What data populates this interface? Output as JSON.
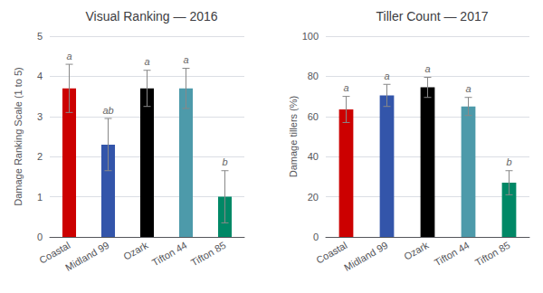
{
  "chart_data": [
    {
      "type": "bar",
      "title": "Visual Ranking — 2016",
      "ylabel": "Damage Ranking Scale (1 to 5)",
      "categories": [
        "Coastal",
        "Midland 99",
        "Ozark",
        "Tifton 44",
        "Tifton 85"
      ],
      "values": [
        3.7,
        2.3,
        3.7,
        3.7,
        1.0
      ],
      "errors": [
        0.6,
        0.65,
        0.45,
        0.5,
        0.65
      ],
      "colors": [
        "#cc0000",
        "#3355aa",
        "#000000",
        "#4d9aaa",
        "#008866"
      ],
      "annotations": [
        "a",
        "ab",
        "a",
        "a",
        "b"
      ],
      "ylim": [
        0,
        5
      ],
      "yticks": [
        0,
        1,
        2,
        3,
        4,
        5
      ],
      "grid": true
    },
    {
      "type": "bar",
      "title": "Tiller Count — 2017",
      "ylabel": "Damage tillers (%)",
      "categories": [
        "Coastal",
        "Midland 99",
        "Ozark",
        "Tifton 44",
        "Tifton 85"
      ],
      "values": [
        63.5,
        70.5,
        74.5,
        65.0,
        27.0
      ],
      "errors": [
        6.5,
        5.5,
        5.0,
        4.5,
        6.0
      ],
      "colors": [
        "#cc0000",
        "#3355aa",
        "#000000",
        "#4d9aaa",
        "#008866"
      ],
      "annotations": [
        "a",
        "a",
        "a",
        "a",
        "b"
      ],
      "ylim": [
        0,
        100
      ],
      "yticks": [
        0,
        20,
        40,
        60,
        80,
        100
      ],
      "grid": true
    }
  ]
}
